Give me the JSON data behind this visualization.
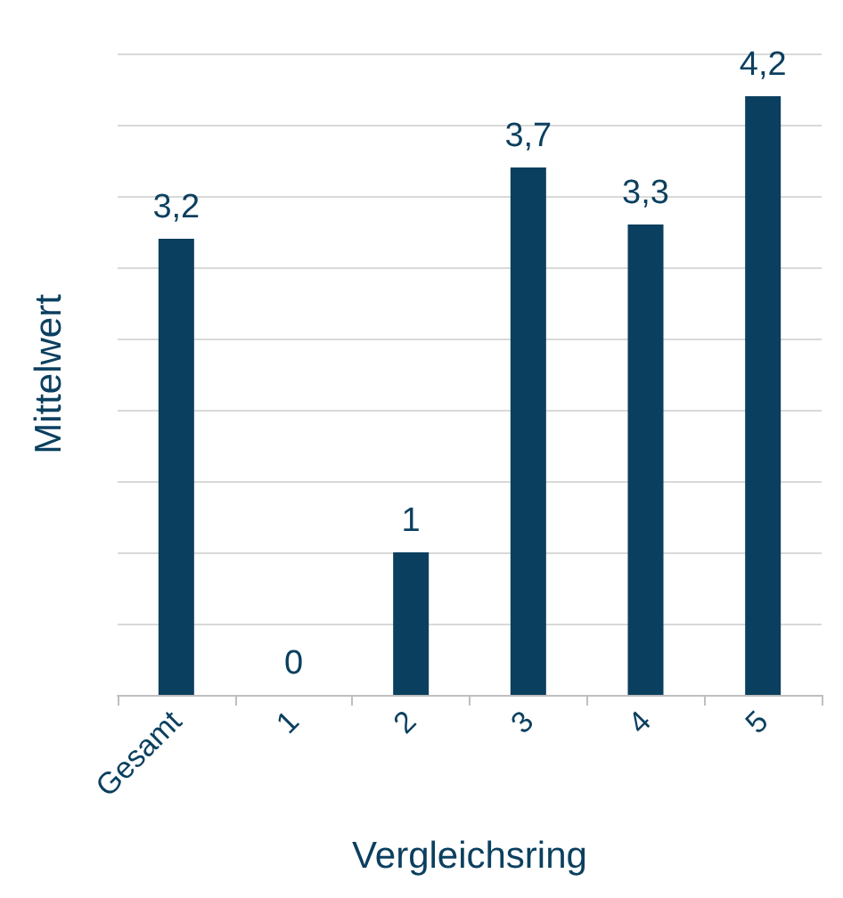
{
  "chart_data": {
    "type": "bar",
    "xlabel": "Vergleichsring",
    "ylabel": "Mittelwert",
    "categories": [
      "Gesamt",
      "1",
      "2",
      "3",
      "4",
      "5"
    ],
    "values": [
      3.2,
      0,
      1,
      3.7,
      3.3,
      4.2
    ],
    "value_labels": [
      "3,2",
      "0",
      "1",
      "3,7",
      "3,3",
      "4,2"
    ],
    "color": "#0b3f5f",
    "ylim": [
      0,
      4.5
    ],
    "yticks": [
      {
        "value": 0,
        "label": null
      },
      {
        "value": 0.5,
        "label": null
      },
      {
        "value": 1,
        "label": null
      },
      {
        "value": 1.5,
        "label": null
      },
      {
        "value": 2,
        "label": null
      },
      {
        "value": 2.5,
        "label": null
      },
      {
        "value": 3,
        "label": null
      },
      {
        "value": 3.5,
        "label": null
      },
      {
        "value": 4,
        "label": null
      },
      {
        "value": 4.5,
        "label": null
      }
    ],
    "grid": "y",
    "tick_labels": "x"
  }
}
